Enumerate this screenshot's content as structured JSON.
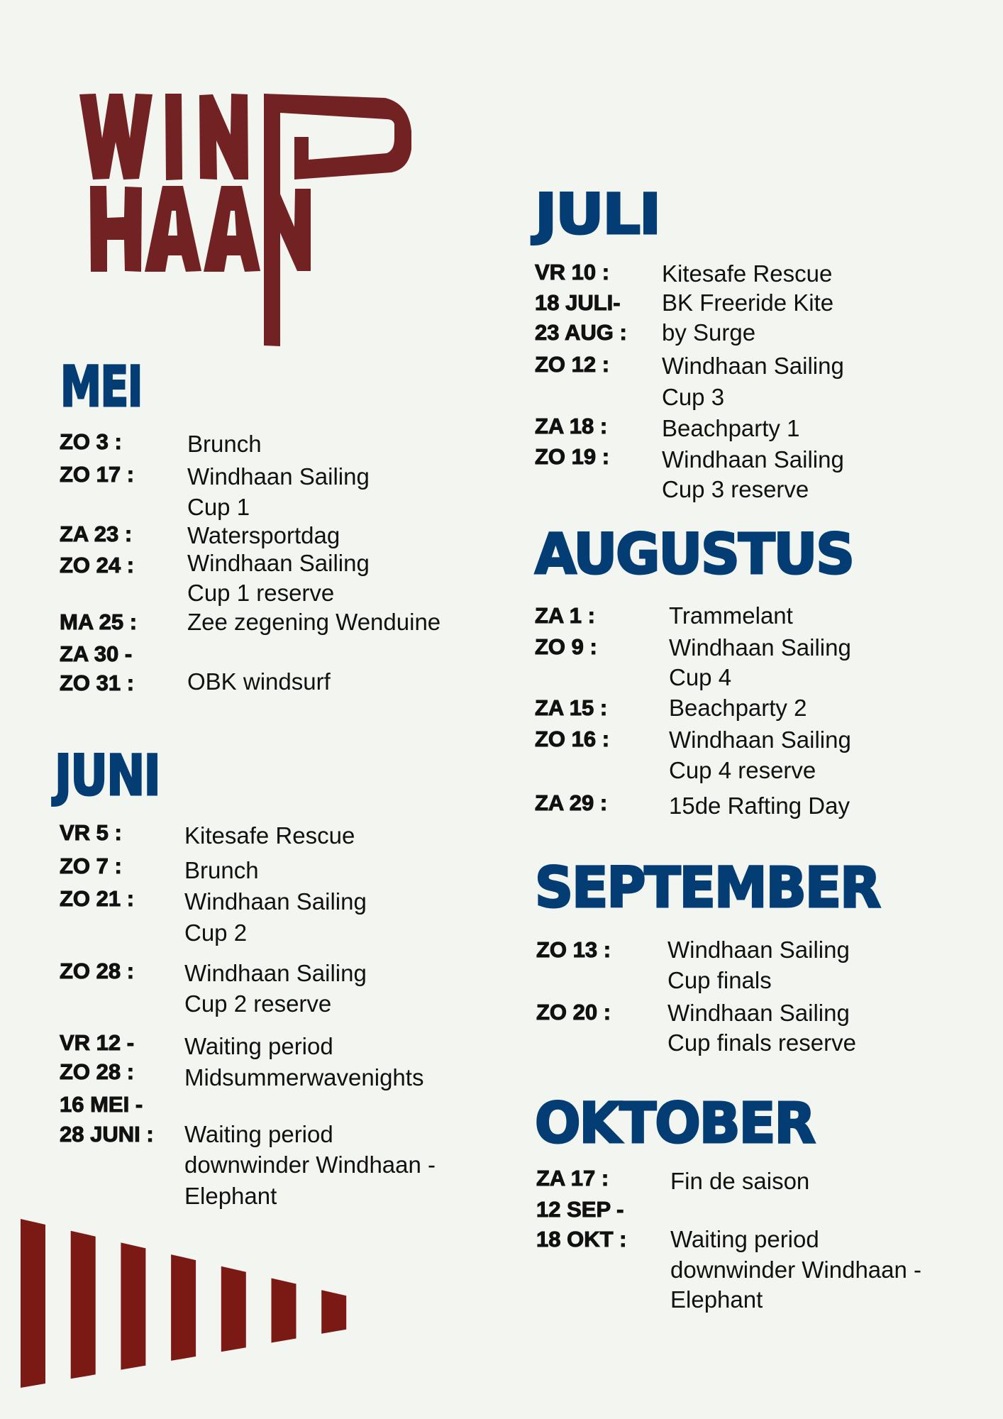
{
  "logo": {
    "text": "WINDHAAN",
    "color": "#722222"
  },
  "colors": {
    "background": "#f3f5f0",
    "heading": "#033d74",
    "text": "#111111",
    "bars": "#7b1a15"
  },
  "sections": [
    {
      "heading": "MEI",
      "entries": [
        {
          "date": [
            "ZO 3 :"
          ],
          "text": [
            "Brunch"
          ]
        },
        {
          "date": [
            "ZO 17 :"
          ],
          "text": [
            "Windhaan Sailing",
            "Cup 1"
          ]
        },
        {
          "date": [
            "ZA 23 :"
          ],
          "text": [
            "Watersportdag"
          ]
        },
        {
          "date": [
            "ZO 24 :"
          ],
          "text": [
            "Windhaan Sailing",
            "Cup 1 reserve"
          ]
        },
        {
          "date": [
            "MA 25 :"
          ],
          "text": [
            "Zee zegening Wenduine"
          ]
        },
        {
          "date": [
            "ZA 30 -",
            "ZO 31 :"
          ],
          "text": [
            "OBK windsurf"
          ]
        }
      ]
    },
    {
      "heading": "JUNI",
      "entries": [
        {
          "date": [
            "VR 5 :"
          ],
          "text": [
            "Kitesafe Rescue"
          ]
        },
        {
          "date": [
            "ZO 7 :"
          ],
          "text": [
            "Brunch"
          ]
        },
        {
          "date": [
            "ZO 21 :"
          ],
          "text": [
            "Windhaan Sailing",
            "Cup 2"
          ]
        },
        {
          "date": [
            "ZO 28 :"
          ],
          "text": [
            "Windhaan Sailing",
            "Cup 2 reserve"
          ]
        },
        {
          "date": [
            "VR 12 -",
            "ZO 28 :"
          ],
          "text": [
            "Waiting period",
            "Midsummerwavenights"
          ]
        },
        {
          "date": [
            "16 MEI -",
            "28 JUNI :"
          ],
          "text": [
            "Waiting period",
            "downwinder Windhaan -",
            "Elephant"
          ]
        }
      ]
    },
    {
      "heading": "JULI",
      "entries": [
        {
          "date": [
            "VR 10 :"
          ],
          "text": [
            "Kitesafe Rescue"
          ]
        },
        {
          "date": [
            "18 JULI-",
            "23 AUG :"
          ],
          "text": [
            "BK Freeride Kite",
            "by Surge"
          ]
        },
        {
          "date": [
            "ZO 12 :"
          ],
          "text": [
            "Windhaan Sailing",
            "Cup 3"
          ]
        },
        {
          "date": [
            "ZA 18 :"
          ],
          "text": [
            "Beachparty 1"
          ]
        },
        {
          "date": [
            "ZO 19 :"
          ],
          "text": [
            "Windhaan Sailing",
            "Cup 3 reserve"
          ]
        }
      ]
    },
    {
      "heading": "AUGUSTUS",
      "entries": [
        {
          "date": [
            "ZA 1 :"
          ],
          "text": [
            "Trammelant"
          ]
        },
        {
          "date": [
            "ZO 9 :"
          ],
          "text": [
            "Windhaan Sailing",
            "Cup 4"
          ]
        },
        {
          "date": [
            "ZA 15 :"
          ],
          "text": [
            "Beachparty 2"
          ]
        },
        {
          "date": [
            "ZO 16 :"
          ],
          "text": [
            "Windhaan Sailing",
            "Cup 4 reserve"
          ]
        },
        {
          "date": [
            "ZA 29 :"
          ],
          "text": [
            "15de Rafting Day"
          ]
        }
      ]
    },
    {
      "heading": "SEPTEMBER",
      "entries": [
        {
          "date": [
            "ZO 13 :"
          ],
          "text": [
            "Windhaan Sailing",
            "Cup finals"
          ]
        },
        {
          "date": [
            "ZO 20 :"
          ],
          "text": [
            "Windhaan Sailing",
            "Cup finals reserve"
          ]
        }
      ]
    },
    {
      "heading": "OKTOBER",
      "entries": [
        {
          "date": [
            "ZA 17 :"
          ],
          "text": [
            "Fin de saison"
          ]
        },
        {
          "date": [
            "12 SEP -",
            "18 OKT :"
          ],
          "text": [
            "Waiting period",
            "downwinder Windhaan -",
            "Elephant"
          ]
        }
      ]
    }
  ]
}
